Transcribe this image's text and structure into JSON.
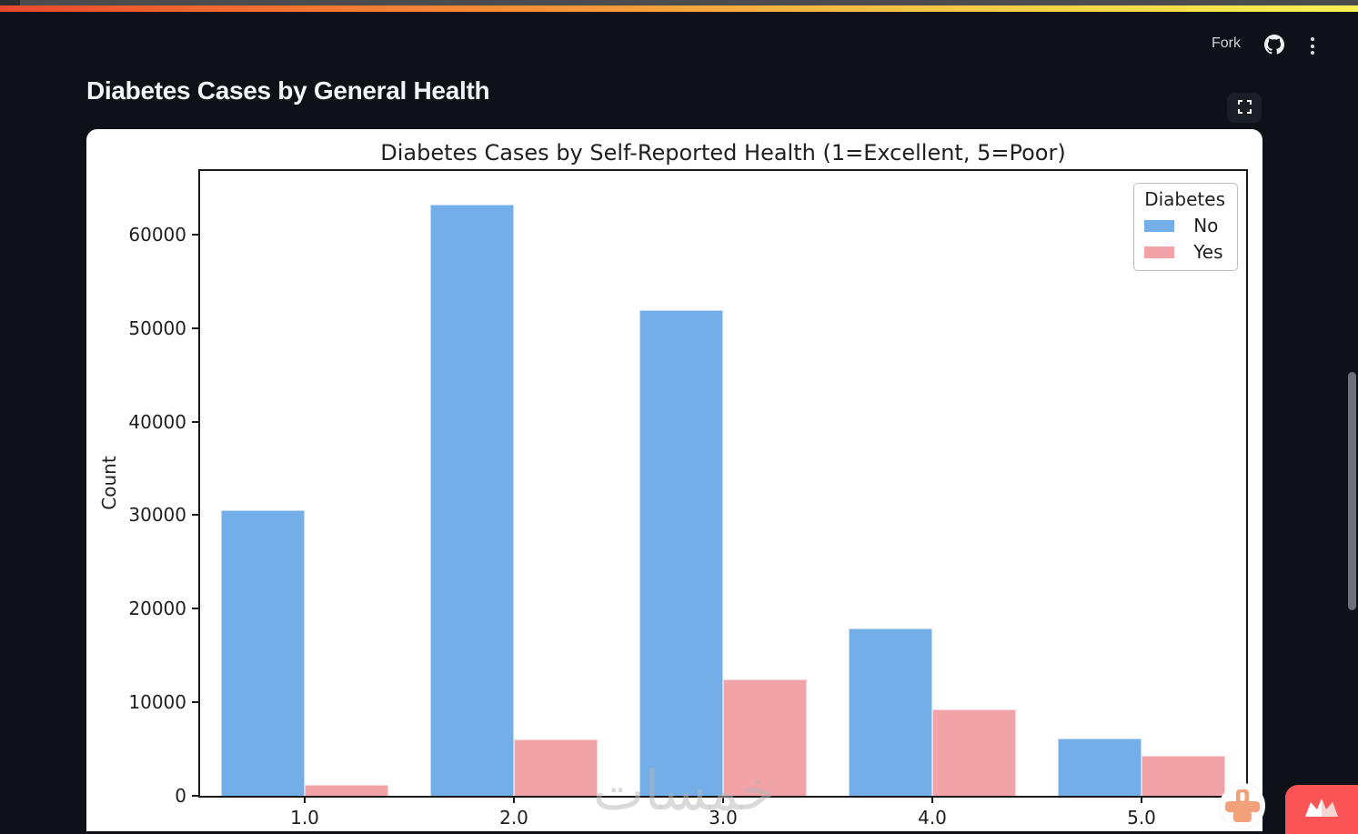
{
  "page": {
    "title": "Diabetes Cases by General Health"
  },
  "header": {
    "fork_label": "Fork",
    "icons": {
      "github": "github-octocat-icon",
      "menu": "kebab-menu-icon",
      "expand": "fullscreen-expand-icon"
    }
  },
  "watermark": {
    "text": "خمسات",
    "badge_icon": "khamsat-stippled-badge-icon",
    "corner_logo_icon": "crown-logo-icon"
  },
  "colors": {
    "page_background": "#0d1117",
    "card_background": "#ffffff",
    "bar_no_blue": "#74AEE8",
    "bar_yes_pink": "#F2A3A8",
    "brand_red": "#FB5457",
    "badge_orange": "#F2A17B",
    "scrollbar_gray": "#6D7177",
    "top_gradient": [
      "#EA482D",
      "#F68234",
      "#F5BD43",
      "#F9F158"
    ]
  },
  "chart_data": {
    "type": "bar",
    "title": "Diabetes Cases by Self-Reported Health (1=Excellent, 5=Poor)",
    "xlabel": "",
    "ylabel": "Count",
    "categories": [
      "1.0",
      "2.0",
      "3.0",
      "4.0",
      "5.0"
    ],
    "series": [
      {
        "name": "No",
        "color": "#74AEE8",
        "values": [
          30500,
          63200,
          51900,
          17900,
          6100
        ]
      },
      {
        "name": "Yes",
        "color": "#F2A3A8",
        "values": [
          1200,
          6000,
          12400,
          9200,
          4300
        ]
      }
    ],
    "yticks": [
      0,
      10000,
      20000,
      30000,
      40000,
      50000,
      60000
    ],
    "ylim": [
      0,
      66800
    ],
    "legend_title": "Diabetes",
    "legend_position": "upper right",
    "grid": false
  }
}
